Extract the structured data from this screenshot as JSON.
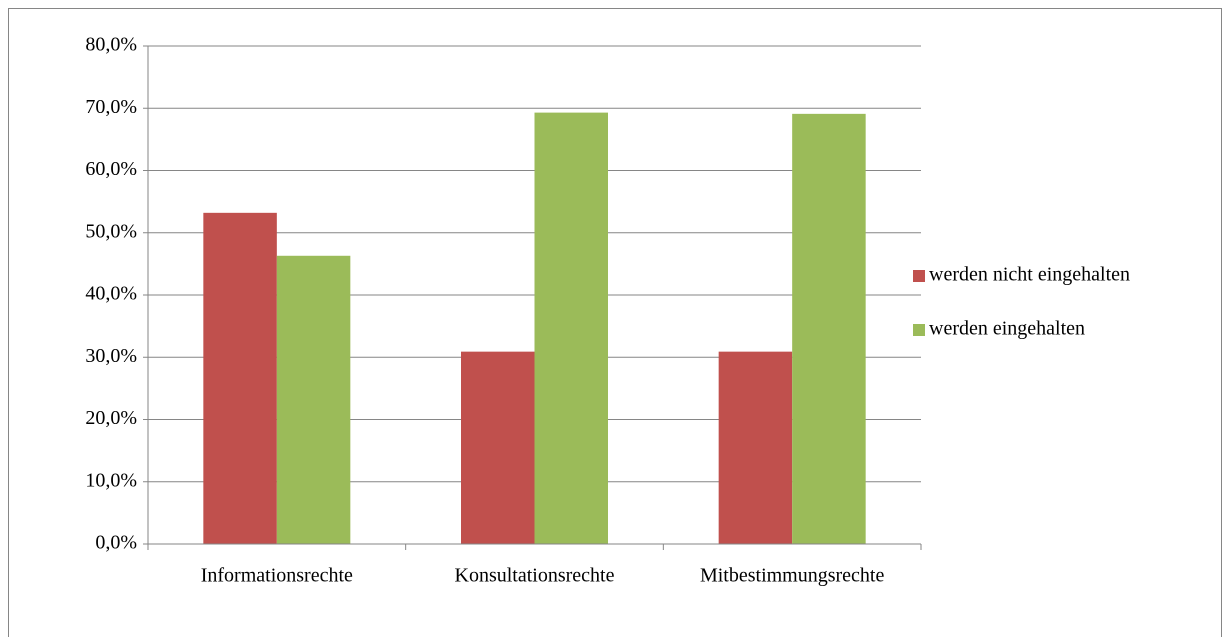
{
  "chart_data": {
    "type": "bar",
    "categories": [
      "Informationsrechte",
      "Konsultationsrechte",
      "Mitbestimmungsrechte"
    ],
    "series": [
      {
        "name": "werden nicht eingehalten",
        "color": "#c0504d",
        "values": [
          53.2,
          30.9,
          30.9
        ]
      },
      {
        "name": "werden eingehalten",
        "color": "#9bbb59",
        "values": [
          46.3,
          69.3,
          69.1
        ]
      }
    ],
    "ylim": [
      0,
      80
    ],
    "yticks": [
      {
        "value": 0,
        "label": "0,0%"
      },
      {
        "value": 10,
        "label": "10,0%"
      },
      {
        "value": 20,
        "label": "20,0%"
      },
      {
        "value": 30,
        "label": "30,0%"
      },
      {
        "value": 40,
        "label": "40,0%"
      },
      {
        "value": 50,
        "label": "50,0%"
      },
      {
        "value": 60,
        "label": "60,0%"
      },
      {
        "value": 70,
        "label": "70,0%"
      },
      {
        "value": 80,
        "label": "80,0%"
      }
    ],
    "grid": true,
    "legend": "right"
  }
}
